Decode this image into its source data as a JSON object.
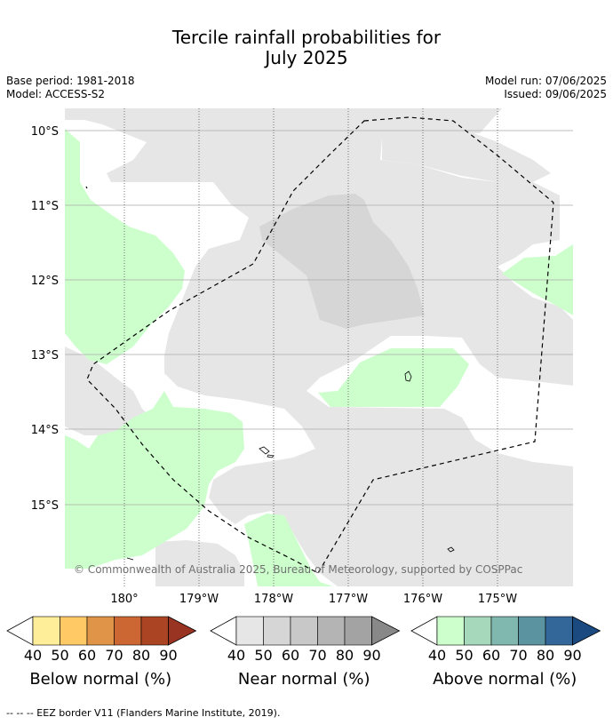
{
  "title_line1": "Tercile rainfall probabilities for",
  "title_line2": "July 2025",
  "meta": {
    "base_period": "Base period: 1981-2018",
    "model": "Model: ACCESS-S2",
    "model_run": "Model run: 07/06/2025",
    "issued": "Issued: 09/06/2025"
  },
  "map": {
    "lat_labels": [
      "10°S",
      "11°S",
      "12°S",
      "13°S",
      "14°S",
      "15°S"
    ],
    "lon_labels": [
      "180°",
      "179°W",
      "178°W",
      "177°W",
      "176°W",
      "175°W"
    ],
    "copyright": "© Commonwealth of Australia 2025, Bureau of Meteorology, supported by COSPPac",
    "colors": {
      "land_none": "#ffffff",
      "near_normal_40": "#e6e6e6",
      "near_normal_50": "#d6d6d6",
      "above_normal_40": "#ccffcc",
      "eez_border": "#000000"
    }
  },
  "colorbars": [
    {
      "title": "Below normal (%)",
      "ticks": [
        "40",
        "50",
        "60",
        "70",
        "80",
        "90"
      ],
      "colors": [
        "#ffee99",
        "#ffc966",
        "#e09448",
        "#cc6633",
        "#aa4422",
        "#993322"
      ]
    },
    {
      "title": "Near normal (%)",
      "ticks": [
        "40",
        "50",
        "60",
        "70",
        "80",
        "90"
      ],
      "colors": [
        "#e6e6e6",
        "#d6d6d6",
        "#c8c8c8",
        "#b4b4b4",
        "#a3a3a3",
        "#888888"
      ]
    },
    {
      "title": "Above normal (%)",
      "ticks": [
        "40",
        "50",
        "60",
        "70",
        "80",
        "90"
      ],
      "colors": [
        "#ccffcc",
        "#a6d9bb",
        "#80b8b0",
        "#5b93a0",
        "#336699",
        "#1a4a80"
      ]
    }
  ],
  "footnote": "--  --  -- EEZ border V11 (Flanders Marine Institute, 2019)."
}
